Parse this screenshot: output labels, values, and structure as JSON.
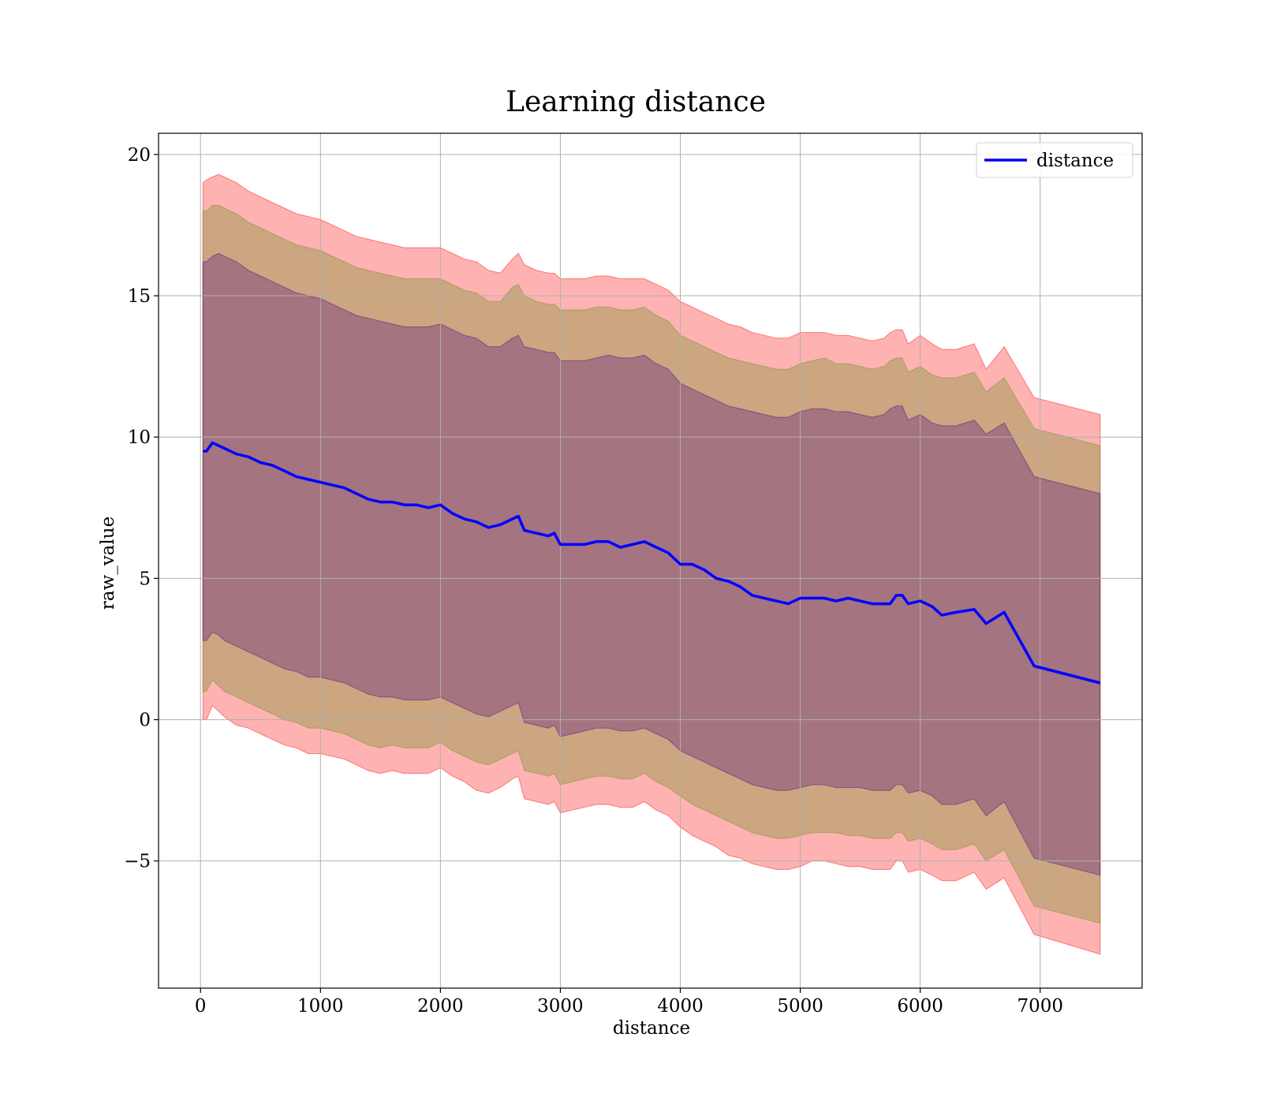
{
  "chart_data": {
    "type": "line",
    "title": "Learning distance",
    "xlabel": "distance",
    "ylabel": "raw_value",
    "xlim": [
      -350,
      7850
    ],
    "ylim": [
      -9.5,
      20.75
    ],
    "xticks": [
      0,
      1000,
      2000,
      3000,
      4000,
      5000,
      6000,
      7000
    ],
    "xtick_labels": [
      "0",
      "1000",
      "2000",
      "3000",
      "4000",
      "5000",
      "6000",
      "7000"
    ],
    "yticks": [
      -5,
      0,
      5,
      10,
      15,
      20
    ],
    "ytick_labels": [
      "−5",
      "0",
      "5",
      "10",
      "15",
      "20"
    ],
    "grid": true,
    "legend": {
      "position": "top-right",
      "entries": [
        "distance"
      ]
    },
    "series": [
      {
        "name": "distance",
        "color": "#0000ff",
        "x": [
          20,
          50,
          100,
          150,
          200,
          300,
          400,
          500,
          600,
          700,
          800,
          900,
          1000,
          1100,
          1200,
          1300,
          1400,
          1500,
          1600,
          1700,
          1800,
          1900,
          2000,
          2100,
          2200,
          2300,
          2400,
          2500,
          2600,
          2650,
          2700,
          2800,
          2900,
          2950,
          3000,
          3100,
          3200,
          3300,
          3400,
          3500,
          3600,
          3700,
          3800,
          3900,
          4000,
          4100,
          4200,
          4300,
          4400,
          4500,
          4600,
          4700,
          4800,
          4900,
          5000,
          5100,
          5200,
          5300,
          5400,
          5500,
          5600,
          5700,
          5750,
          5800,
          5850,
          5900,
          6000,
          6100,
          6180,
          6300,
          6450,
          6550,
          6700,
          6950,
          7500
        ],
        "y": [
          9.5,
          9.5,
          9.8,
          9.7,
          9.6,
          9.4,
          9.3,
          9.1,
          9.0,
          8.8,
          8.6,
          8.5,
          8.4,
          8.3,
          8.2,
          8.0,
          7.8,
          7.7,
          7.7,
          7.6,
          7.6,
          7.5,
          7.6,
          7.3,
          7.1,
          7.0,
          6.8,
          6.9,
          7.1,
          7.2,
          6.7,
          6.6,
          6.5,
          6.6,
          6.2,
          6.2,
          6.2,
          6.3,
          6.3,
          6.1,
          6.2,
          6.3,
          6.1,
          5.9,
          5.5,
          5.5,
          5.3,
          5.0,
          4.9,
          4.7,
          4.4,
          4.3,
          4.2,
          4.1,
          4.3,
          4.3,
          4.3,
          4.2,
          4.3,
          4.2,
          4.1,
          4.1,
          4.1,
          4.4,
          4.4,
          4.1,
          4.2,
          4.0,
          3.7,
          3.8,
          3.9,
          3.4,
          3.8,
          1.9,
          1.3
        ]
      }
    ],
    "bands": [
      {
        "color": "#ff0000",
        "opacity": 0.3,
        "upper": [
          19.0,
          19.1,
          19.2,
          19.3,
          19.2,
          19.0,
          18.7,
          18.5,
          18.3,
          18.1,
          17.9,
          17.8,
          17.7,
          17.5,
          17.3,
          17.1,
          17.0,
          16.9,
          16.8,
          16.7,
          16.7,
          16.7,
          16.7,
          16.5,
          16.3,
          16.2,
          15.9,
          15.8,
          16.3,
          16.5,
          16.1,
          15.9,
          15.8,
          15.8,
          15.6,
          15.6,
          15.6,
          15.7,
          15.7,
          15.6,
          15.6,
          15.6,
          15.4,
          15.2,
          14.8,
          14.6,
          14.4,
          14.2,
          14.0,
          13.9,
          13.7,
          13.6,
          13.5,
          13.5,
          13.7,
          13.7,
          13.7,
          13.6,
          13.6,
          13.5,
          13.4,
          13.5,
          13.7,
          13.8,
          13.8,
          13.3,
          13.6,
          13.3,
          13.1,
          13.1,
          13.3,
          12.4,
          13.2,
          11.4,
          10.8
        ],
        "lower": [
          0.0,
          0.0,
          0.5,
          0.3,
          0.1,
          -0.2,
          -0.3,
          -0.5,
          -0.7,
          -0.9,
          -1.0,
          -1.2,
          -1.2,
          -1.3,
          -1.4,
          -1.6,
          -1.8,
          -1.9,
          -1.8,
          -1.9,
          -1.9,
          -1.9,
          -1.7,
          -2.0,
          -2.2,
          -2.5,
          -2.6,
          -2.4,
          -2.1,
          -2.0,
          -2.8,
          -2.9,
          -3.0,
          -2.9,
          -3.3,
          -3.2,
          -3.1,
          -3.0,
          -3.0,
          -3.1,
          -3.1,
          -2.9,
          -3.2,
          -3.4,
          -3.8,
          -4.1,
          -4.3,
          -4.5,
          -4.8,
          -4.9,
          -5.1,
          -5.2,
          -5.3,
          -5.3,
          -5.2,
          -5.0,
          -5.0,
          -5.1,
          -5.2,
          -5.2,
          -5.3,
          -5.3,
          -5.3,
          -5.0,
          -5.0,
          -5.4,
          -5.3,
          -5.5,
          -5.7,
          -5.7,
          -5.4,
          -6.0,
          -5.6,
          -7.6,
          -8.3
        ]
      },
      {
        "color": "#6b8e23",
        "opacity": 0.35,
        "upper": [
          18.0,
          18.0,
          18.2,
          18.2,
          18.1,
          17.9,
          17.6,
          17.4,
          17.2,
          17.0,
          16.8,
          16.7,
          16.6,
          16.4,
          16.2,
          16.0,
          15.9,
          15.8,
          15.7,
          15.6,
          15.6,
          15.6,
          15.6,
          15.4,
          15.2,
          15.1,
          14.8,
          14.8,
          15.3,
          15.4,
          15.0,
          14.8,
          14.7,
          14.7,
          14.5,
          14.5,
          14.5,
          14.6,
          14.6,
          14.5,
          14.5,
          14.6,
          14.3,
          14.1,
          13.6,
          13.4,
          13.2,
          13.0,
          12.8,
          12.7,
          12.6,
          12.5,
          12.4,
          12.4,
          12.6,
          12.7,
          12.8,
          12.6,
          12.6,
          12.5,
          12.4,
          12.5,
          12.7,
          12.8,
          12.8,
          12.3,
          12.5,
          12.2,
          12.1,
          12.1,
          12.3,
          11.6,
          12.1,
          10.3,
          9.7
        ],
        "lower": [
          1.0,
          1.0,
          1.4,
          1.2,
          1.0,
          0.8,
          0.6,
          0.4,
          0.2,
          0.0,
          -0.1,
          -0.3,
          -0.3,
          -0.4,
          -0.5,
          -0.7,
          -0.9,
          -1.0,
          -0.9,
          -1.0,
          -1.0,
          -1.0,
          -0.8,
          -1.1,
          -1.3,
          -1.5,
          -1.6,
          -1.4,
          -1.2,
          -1.1,
          -1.8,
          -1.9,
          -2.0,
          -1.9,
          -2.3,
          -2.2,
          -2.1,
          -2.0,
          -2.0,
          -2.1,
          -2.1,
          -1.9,
          -2.2,
          -2.4,
          -2.7,
          -3.0,
          -3.2,
          -3.4,
          -3.6,
          -3.8,
          -4.0,
          -4.1,
          -4.2,
          -4.2,
          -4.1,
          -4.0,
          -4.0,
          -4.0,
          -4.1,
          -4.1,
          -4.2,
          -4.2,
          -4.2,
          -4.0,
          -4.0,
          -4.3,
          -4.2,
          -4.4,
          -4.6,
          -4.6,
          -4.4,
          -5.0,
          -4.6,
          -6.6,
          -7.2
        ]
      },
      {
        "color": "#4b0082",
        "opacity": 0.3,
        "upper": [
          16.2,
          16.2,
          16.4,
          16.5,
          16.4,
          16.2,
          15.9,
          15.7,
          15.5,
          15.3,
          15.1,
          15.0,
          14.9,
          14.7,
          14.5,
          14.3,
          14.2,
          14.1,
          14.0,
          13.9,
          13.9,
          13.9,
          14.0,
          13.8,
          13.6,
          13.5,
          13.2,
          13.2,
          13.5,
          13.6,
          13.2,
          13.1,
          13.0,
          13.0,
          12.7,
          12.7,
          12.7,
          12.8,
          12.9,
          12.8,
          12.8,
          12.9,
          12.6,
          12.4,
          11.9,
          11.7,
          11.5,
          11.3,
          11.1,
          11.0,
          10.9,
          10.8,
          10.7,
          10.7,
          10.9,
          11.0,
          11.0,
          10.9,
          10.9,
          10.8,
          10.7,
          10.8,
          11.0,
          11.1,
          11.1,
          10.6,
          10.8,
          10.5,
          10.4,
          10.4,
          10.6,
          10.1,
          10.5,
          8.6,
          8.0
        ],
        "lower": [
          2.8,
          2.8,
          3.1,
          3.0,
          2.8,
          2.6,
          2.4,
          2.2,
          2.0,
          1.8,
          1.7,
          1.5,
          1.5,
          1.4,
          1.3,
          1.1,
          0.9,
          0.8,
          0.8,
          0.7,
          0.7,
          0.7,
          0.8,
          0.6,
          0.4,
          0.2,
          0.1,
          0.3,
          0.5,
          0.6,
          -0.1,
          -0.2,
          -0.3,
          -0.2,
          -0.6,
          -0.5,
          -0.4,
          -0.3,
          -0.3,
          -0.4,
          -0.4,
          -0.3,
          -0.5,
          -0.7,
          -1.1,
          -1.3,
          -1.5,
          -1.7,
          -1.9,
          -2.1,
          -2.3,
          -2.4,
          -2.5,
          -2.5,
          -2.4,
          -2.3,
          -2.3,
          -2.4,
          -2.4,
          -2.4,
          -2.5,
          -2.5,
          -2.5,
          -2.3,
          -2.3,
          -2.6,
          -2.5,
          -2.7,
          -3.0,
          -3.0,
          -2.8,
          -3.4,
          -2.9,
          -4.9,
          -5.5
        ]
      }
    ]
  }
}
